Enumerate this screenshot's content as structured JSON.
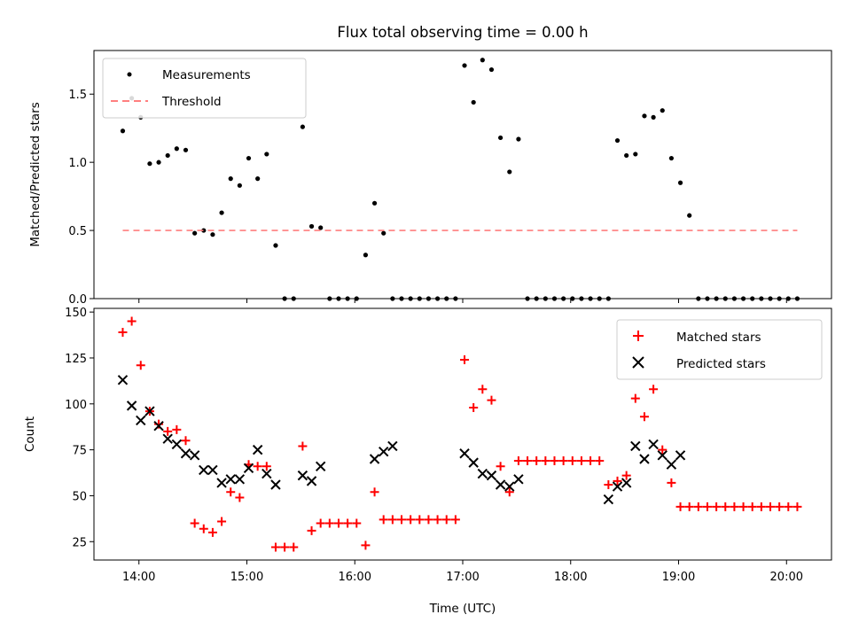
{
  "chart_data": [
    {
      "type": "scatter",
      "title": "Flux total observing time = 0.00 h",
      "xlabel": "",
      "ylabel": "Matched/Predicted stars",
      "ylim": [
        0,
        1.82
      ],
      "xlim": [
        "13:35",
        "20:25"
      ],
      "yticks": [
        "0.0",
        "0.5",
        "1.0",
        "1.5"
      ],
      "xticks": [
        "14:00",
        "15:00",
        "16:00",
        "17:00",
        "18:00",
        "19:00",
        "20:00"
      ],
      "legend_position": "top-left",
      "series": [
        {
          "name": "Measurements",
          "marker": "dot",
          "color": "#000000",
          "x": [
            "13:51",
            "13:56",
            "14:01",
            "14:06",
            "14:11",
            "14:16",
            "14:21",
            "14:26",
            "14:31",
            "14:36",
            "14:41",
            "14:46",
            "14:51",
            "14:56",
            "15:01",
            "15:06",
            "15:11",
            "15:16",
            "15:21",
            "15:26",
            "15:31",
            "15:36",
            "15:41",
            "15:46",
            "15:51",
            "15:56",
            "16:01",
            "16:06",
            "16:11",
            "16:16",
            "16:21",
            "16:26",
            "16:31",
            "16:36",
            "16:41",
            "16:46",
            "16:51",
            "16:56",
            "17:01",
            "17:06",
            "17:11",
            "17:16",
            "17:21",
            "17:26",
            "17:31",
            "17:36",
            "17:41",
            "17:46",
            "17:51",
            "17:56",
            "18:01",
            "18:06",
            "18:11",
            "18:16",
            "18:21",
            "18:26",
            "18:31",
            "18:36",
            "18:41",
            "18:46",
            "18:51",
            "18:56",
            "19:01",
            "19:06",
            "19:11",
            "19:16",
            "19:21",
            "19:26",
            "19:31",
            "19:36",
            "19:41",
            "19:46",
            "19:51",
            "19:56",
            "20:01",
            "20:06"
          ],
          "y": [
            1.23,
            1.47,
            1.33,
            0.99,
            1.0,
            1.05,
            1.1,
            1.09,
            0.48,
            0.5,
            0.47,
            0.63,
            0.88,
            0.83,
            1.03,
            0.88,
            1.06,
            0.39,
            0.0,
            0.0,
            1.26,
            0.53,
            0.52,
            0.0,
            0.0,
            0.0,
            0.0,
            0.32,
            0.7,
            0.48,
            0.0,
            0.0,
            0.0,
            0.0,
            0.0,
            0.0,
            0.0,
            0.0,
            1.71,
            1.44,
            1.75,
            1.68,
            1.18,
            0.93,
            1.17,
            0.0,
            0.0,
            0.0,
            0.0,
            0.0,
            0.0,
            0.0,
            0.0,
            0.0,
            0.0,
            1.16,
            1.05,
            1.06,
            1.34,
            1.33,
            1.38,
            1.03,
            0.85,
            0.61,
            0.0,
            0.0,
            0.0,
            0.0,
            0.0,
            0.0,
            0.0,
            0.0,
            0.0,
            0.0,
            0.0,
            0.0
          ]
        },
        {
          "name": "Threshold",
          "marker": "dashed-line",
          "color": "#ff7f7f",
          "x": [
            "13:51",
            "20:06"
          ],
          "y": [
            0.5,
            0.5
          ]
        }
      ]
    },
    {
      "type": "scatter",
      "title": "",
      "xlabel": "Time (UTC)",
      "ylabel": "Count",
      "ylim": [
        15,
        152
      ],
      "xlim": [
        "13:35",
        "20:25"
      ],
      "yticks": [
        "25",
        "50",
        "75",
        "100",
        "125",
        "150"
      ],
      "xticks": [
        "14:00",
        "15:00",
        "16:00",
        "17:00",
        "18:00",
        "19:00",
        "20:00"
      ],
      "legend_position": "top-right",
      "series": [
        {
          "name": "Matched stars",
          "marker": "plus",
          "color": "#ff0000",
          "x": [
            "13:51",
            "13:56",
            "14:01",
            "14:06",
            "14:11",
            "14:16",
            "14:21",
            "14:26",
            "14:31",
            "14:36",
            "14:41",
            "14:46",
            "14:51",
            "14:56",
            "15:01",
            "15:06",
            "15:11",
            "15:16",
            "15:21",
            "15:26",
            "15:31",
            "15:36",
            "15:41",
            "15:46",
            "15:51",
            "15:56",
            "16:01",
            "16:06",
            "16:11",
            "16:16",
            "16:21",
            "16:26",
            "16:31",
            "16:36",
            "16:41",
            "16:46",
            "16:51",
            "16:56",
            "17:01",
            "17:06",
            "17:11",
            "17:16",
            "17:21",
            "17:26",
            "17:31",
            "17:36",
            "17:41",
            "17:46",
            "17:51",
            "17:56",
            "18:01",
            "18:06",
            "18:11",
            "18:16",
            "18:21",
            "18:26",
            "18:31",
            "18:36",
            "18:41",
            "18:46",
            "18:51",
            "18:56",
            "19:01",
            "19:06",
            "19:11",
            "19:16",
            "19:21",
            "19:26",
            "19:31",
            "19:36",
            "19:41",
            "19:46",
            "19:51",
            "19:56",
            "20:01",
            "20:06"
          ],
          "y": [
            139,
            145,
            121,
            96,
            89,
            85,
            86,
            80,
            35,
            32,
            30,
            36,
            52,
            49,
            67,
            66,
            66,
            22,
            22,
            22,
            77,
            31,
            35,
            35,
            35,
            35,
            35,
            23,
            52,
            37,
            37,
            37,
            37,
            37,
            37,
            37,
            37,
            37,
            124,
            98,
            108,
            102,
            66,
            52,
            69,
            69,
            69,
            69,
            69,
            69,
            69,
            69,
            69,
            69,
            56,
            58,
            61,
            103,
            93,
            108,
            75,
            57,
            44,
            44,
            44,
            44,
            44,
            44,
            44,
            44,
            44,
            44,
            44,
            44,
            44,
            44
          ]
        },
        {
          "name": "Predicted stars",
          "marker": "x",
          "color": "#000000",
          "x": [
            "13:51",
            "13:56",
            "14:01",
            "14:06",
            "14:11",
            "14:16",
            "14:21",
            "14:26",
            "14:31",
            "14:36",
            "14:41",
            "14:46",
            "14:51",
            "14:56",
            "15:01",
            "15:06",
            "15:11",
            "15:16",
            "15:31",
            "15:36",
            "15:41",
            "16:11",
            "16:16",
            "16:21",
            "17:01",
            "17:06",
            "17:11",
            "17:16",
            "17:21",
            "17:26",
            "17:31",
            "18:21",
            "18:26",
            "18:31",
            "18:36",
            "18:41",
            "18:46",
            "18:51",
            "18:56",
            "19:01"
          ],
          "y": [
            113,
            99,
            91,
            96,
            88,
            81,
            78,
            73,
            72,
            64,
            64,
            57,
            59,
            59,
            65,
            75,
            62,
            56,
            61,
            58,
            66,
            70,
            74,
            77,
            73,
            68,
            62,
            61,
            56,
            55,
            59,
            48,
            55,
            57,
            77,
            70,
            78,
            72,
            67,
            72
          ]
        }
      ]
    }
  ]
}
